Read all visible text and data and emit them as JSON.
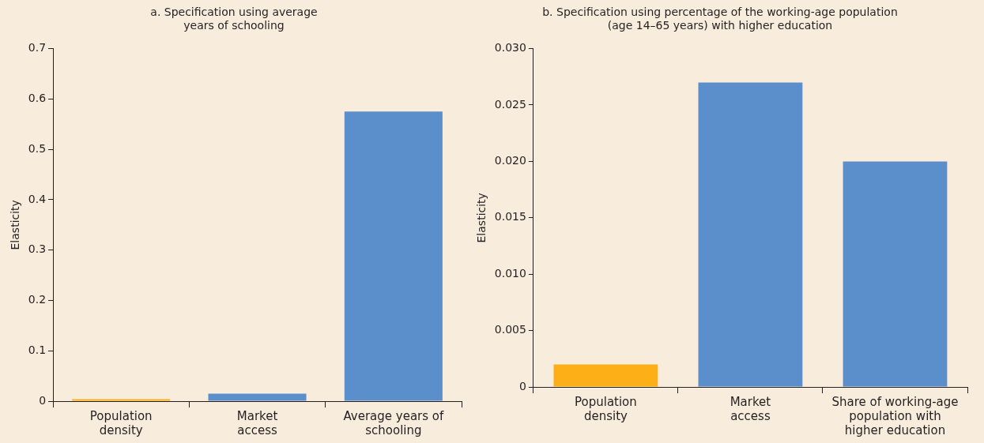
{
  "chart_data": [
    {
      "type": "bar",
      "title": "a. Specification using average years of schooling",
      "ylabel": "Elasticity",
      "categories": [
        "Population density",
        "Market access",
        "Average years of schooling"
      ],
      "values": [
        0.004,
        0.015,
        0.575
      ],
      "colors": [
        "#fcaf17",
        "#5b8fcb",
        "#5b8fcb"
      ],
      "ylim": [
        0,
        0.7
      ],
      "yticks": [
        0,
        0.1,
        0.2,
        0.3,
        0.4,
        0.5,
        0.6,
        0.7
      ],
      "grid": false,
      "legend": false
    },
    {
      "type": "bar",
      "title": "b. Specification using percentage of the working-age population (age 14–65 years) with higher education",
      "ylabel": "Elasticity",
      "categories": [
        "Population density",
        "Market access",
        "Share of working-age population with higher education"
      ],
      "values": [
        0.002,
        0.027,
        0.02
      ],
      "colors": [
        "#fcaf17",
        "#5b8fcb",
        "#5b8fcb"
      ],
      "ylim": [
        0,
        0.03
      ],
      "yticks": [
        0,
        {
          "value": 0.005,
          "label": "0.005"
        },
        {
          "value": 0.01,
          "label": "0.010"
        },
        {
          "value": 0.015,
          "label": "0.015"
        },
        {
          "value": 0.02,
          "label": "0.020"
        },
        {
          "value": 0.025,
          "label": "0.025"
        },
        {
          "value": 0.03,
          "label": "0.030"
        }
      ],
      "grid": false,
      "legend": false
    }
  ]
}
